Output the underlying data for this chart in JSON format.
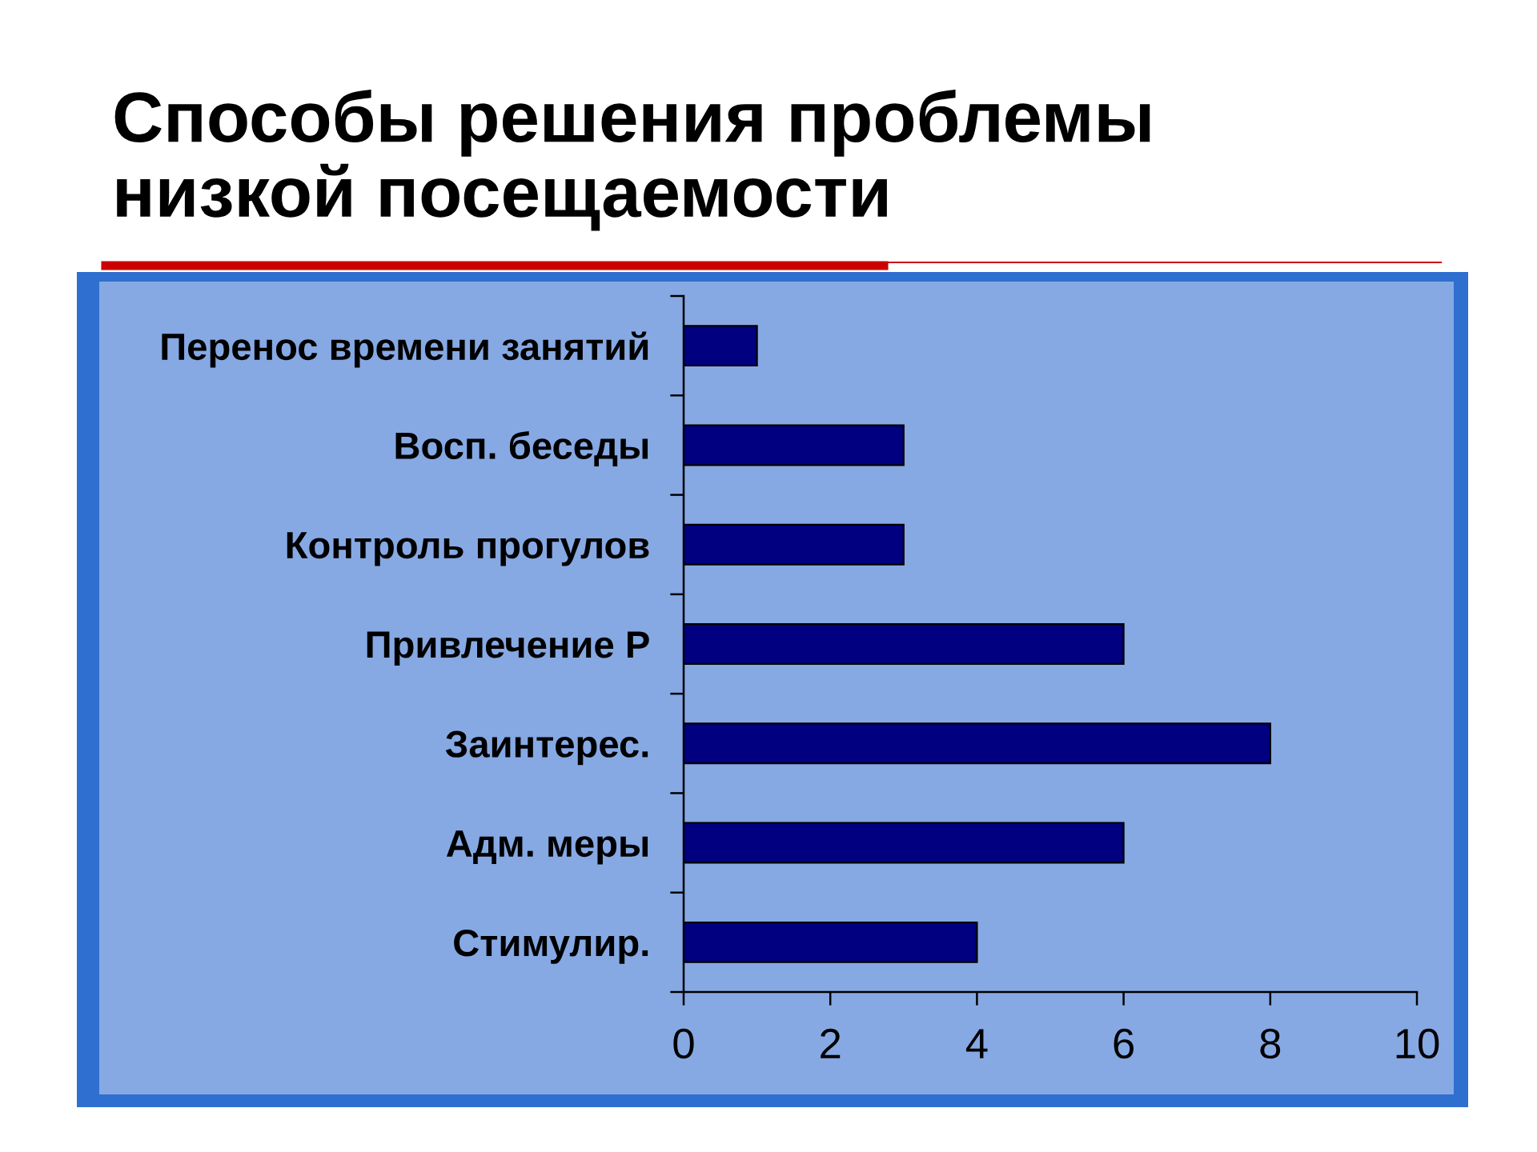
{
  "chart_data": {
    "type": "bar",
    "orientation": "horizontal",
    "title": "Способы решения проблемы\nнизкой посещаемости",
    "categories": [
      "Перенос времени занятий",
      "Восп. беседы",
      "Контроль прогулов",
      "Привлечение Р",
      "Заинтерес.",
      "Адм. меры",
      "Стимулир."
    ],
    "values": [
      1,
      3,
      3,
      6,
      8,
      6,
      4
    ],
    "color": "#000080",
    "xlim": [
      0,
      10
    ],
    "xticks": [
      0,
      2,
      4,
      6,
      8,
      10
    ]
  }
}
